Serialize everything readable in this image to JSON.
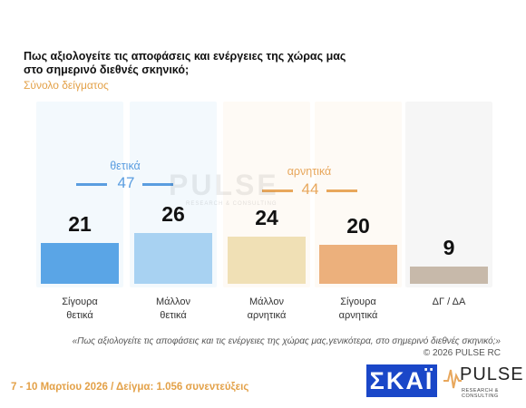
{
  "chart_data": {
    "type": "bar",
    "title": "Πως αξιολογείτε τις αποφάσεις και ενέργειες της χώρας μας στο σημερινό διεθνές σκηνικό;",
    "subtitle": "Σύνολο δείγματος",
    "categories": [
      [
        "Σίγουρα",
        "θετικά"
      ],
      [
        "Μάλλον",
        "θετικά"
      ],
      [
        "Μάλλον",
        "αρνητικά"
      ],
      [
        "Σίγουρα",
        "αρνητικά"
      ],
      [
        "ΔΓ / ΔΑ"
      ]
    ],
    "values": [
      21,
      26,
      24,
      20,
      9
    ],
    "value_labels": [
      "21",
      "26",
      "24",
      "20",
      "9"
    ],
    "ylim": [
      0,
      50
    ],
    "colors": [
      "#5aa5e6",
      "#a8d2f2",
      "#f0e0b5",
      "#ecb07c",
      "#c7b9aa"
    ],
    "groups": [
      {
        "label": "θετικά",
        "total": "47",
        "color": "#5a9de0"
      },
      {
        "label": "αρνητικά",
        "total": "44",
        "color": "#e8a75c"
      }
    ]
  },
  "watermark": {
    "text": "PULSE",
    "sub": "RESEARCH & CONSULTING"
  },
  "footer": {
    "question": "«Πως αξιολογείτε τις αποφάσεις και τις ενέργειες της χώρας μας,γενικότερα, στο σημερινό διεθνές σκηνικό;»",
    "copyright": "© 2026 PULSE RC",
    "date_sample": "7 - 10 Μαρτίου 2026 / Δείγμα: 1.056 συνεντεύξεις"
  },
  "logos": {
    "skai": "ΣΚΑΪ",
    "pulse": "PULSE",
    "pulse_sub": "RESEARCH & CONSULTING"
  }
}
